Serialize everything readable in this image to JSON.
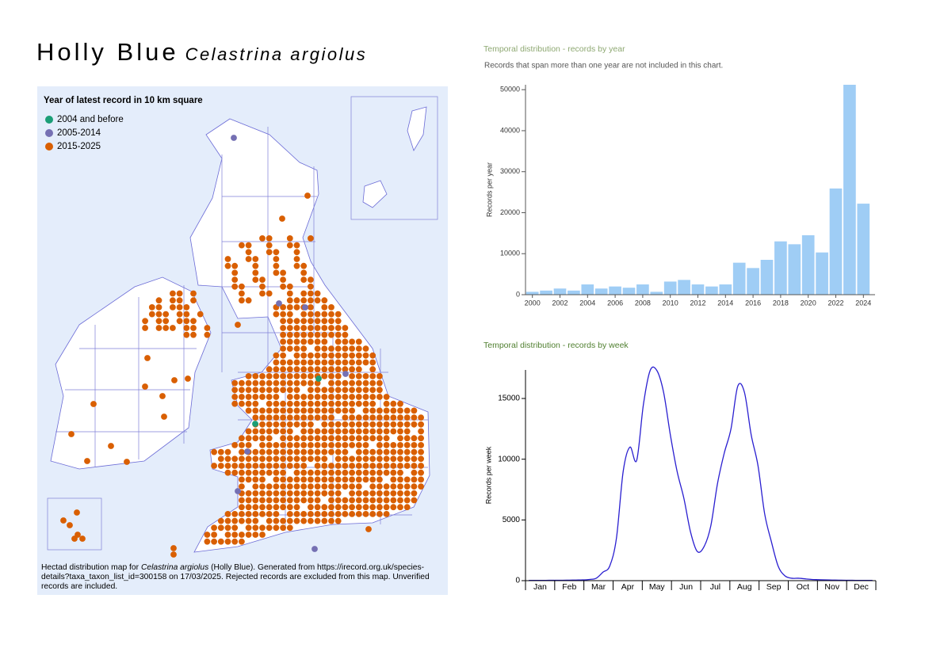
{
  "header": {
    "title": "Holly Blue",
    "subtitle": "Celastrina argiolus"
  },
  "map": {
    "legend_title": "Year of latest record in 10 km square",
    "legend": [
      {
        "label": "2004 and before",
        "color": "#1b9e77"
      },
      {
        "label": "2005-2014",
        "color": "#7570b3"
      },
      {
        "label": "2015-2025",
        "color": "#d95f02"
      }
    ],
    "caption": [
      "Hectad distribution map for",
      "Celastrina argiolus",
      "(Holly Blue). Generated from https://irecord.org.uk/species-details?taxa_taxon_list_id=300158 on 17/03/2025. Rejected records are excluded from this map. Unverified records are included."
    ]
  },
  "chart_data": [
    {
      "type": "bar",
      "title": "Temporal distribution - records by year",
      "subtitle": "Records that span more than one year are not included in this chart.",
      "ylabel": "Records per year",
      "color": "#9fcdf5",
      "categories": [
        "2000",
        null,
        "2002",
        null,
        "2004",
        null,
        "2006",
        null,
        "2008",
        null,
        "2010",
        null,
        "2012",
        null,
        "2014",
        null,
        "2016",
        null,
        "2018",
        null,
        "2020",
        null,
        "2022",
        null,
        "2024"
      ],
      "values": [
        700,
        1000,
        1500,
        1000,
        2500,
        1500,
        2000,
        1700,
        2500,
        700,
        3200,
        3600,
        2500,
        2000,
        2500,
        7800,
        6500,
        8500,
        13000,
        12300,
        14500,
        10300,
        25900,
        51200,
        22200
      ],
      "ylim": [
        0,
        51200
      ],
      "yticks": [
        0,
        10000,
        20000,
        30000,
        40000,
        50000
      ]
    },
    {
      "type": "line",
      "title": "Temporal distribution - records by week",
      "ylabel": "Records per week",
      "color": "#2a1fd0",
      "months": [
        "Jan",
        "Feb",
        "Mar",
        "Apr",
        "May",
        "Jun",
        "Jul",
        "Aug",
        "Sep",
        "Oct",
        "Nov",
        "Dec"
      ],
      "values": [
        20,
        20,
        20,
        30,
        30,
        30,
        40,
        50,
        60,
        100,
        200,
        700,
        1200,
        3500,
        9000,
        11000,
        9900,
        14500,
        17300,
        17300,
        15500,
        12000,
        9000,
        6800,
        4000,
        2400,
        2800,
        4500,
        8000,
        10500,
        12500,
        16000,
        15500,
        12000,
        9500,
        5500,
        3200,
        1200,
        400,
        200,
        200,
        150,
        100,
        80,
        60,
        50,
        40,
        30,
        30,
        20,
        20,
        20
      ],
      "ylim": [
        0,
        17350
      ],
      "yticks": [
        0,
        5000,
        10000,
        15000
      ]
    }
  ]
}
